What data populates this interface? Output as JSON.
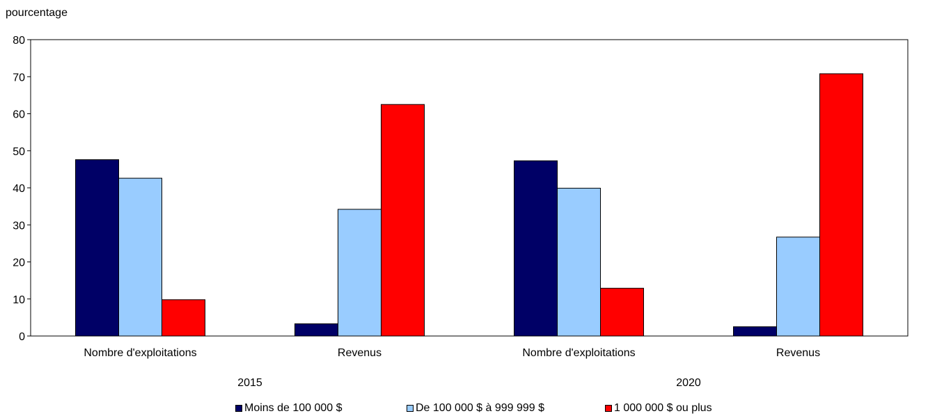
{
  "chart_data": {
    "type": "bar",
    "title": "",
    "ylabel": "pourcentage",
    "xlabel": "",
    "ylim": [
      0,
      80
    ],
    "yticks": [
      0,
      10,
      20,
      30,
      40,
      50,
      60,
      70,
      80
    ],
    "grid": false,
    "legend_placement": "bottom",
    "groups": [
      "2015",
      "2020"
    ],
    "categories": [
      "Nombre d'exploitations",
      "Revenus",
      "Nombre d'exploitations",
      "Revenus"
    ],
    "category_groups": [
      "2015",
      "2015",
      "2020",
      "2020"
    ],
    "series": [
      {
        "name": "Moins de 100 000 $",
        "color": "#000066",
        "values": [
          47.6,
          3.3,
          47.3,
          2.5
        ]
      },
      {
        "name": "De 100 000 $ à 999 999 $",
        "color": "#99ccff",
        "values": [
          42.6,
          34.2,
          39.9,
          26.7
        ]
      },
      {
        "name": "1 000 000 $ ou plus",
        "color": "#ff0000",
        "values": [
          9.8,
          62.5,
          12.9,
          70.8
        ]
      }
    ]
  }
}
